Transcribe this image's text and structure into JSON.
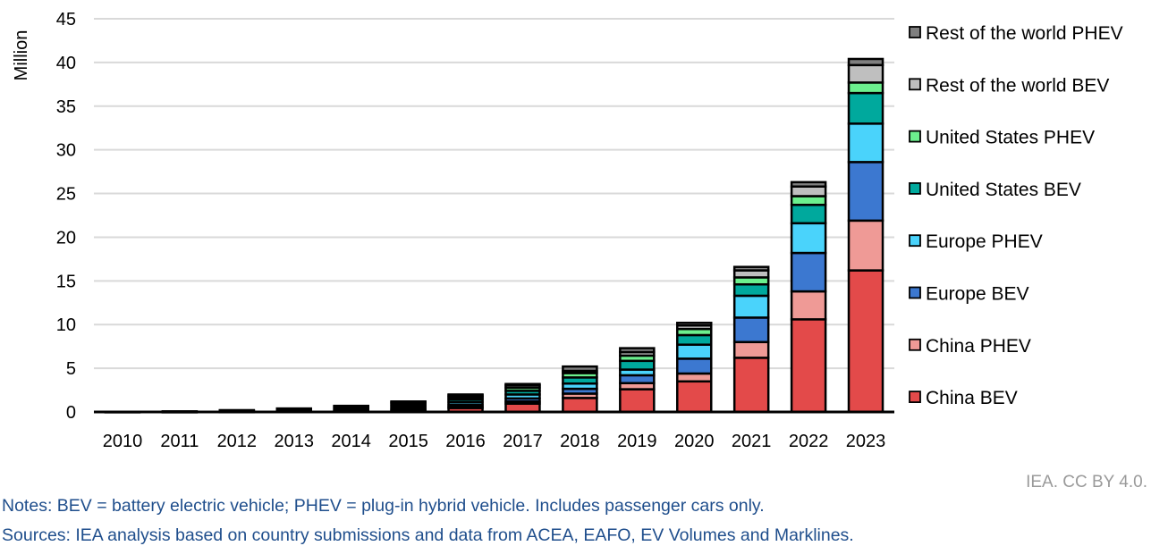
{
  "chart_data": {
    "type": "bar",
    "stacked": true,
    "title": "",
    "xlabel": "",
    "ylabel": "Million",
    "ylim": [
      0,
      45
    ],
    "yticks": [
      0,
      5,
      10,
      15,
      20,
      25,
      30,
      35,
      40,
      45
    ],
    "grid": "horizontal",
    "legend_position": "right",
    "categories": [
      "2010",
      "2011",
      "2012",
      "2013",
      "2014",
      "2015",
      "2016",
      "2017",
      "2018",
      "2019",
      "2020",
      "2021",
      "2022",
      "2023"
    ],
    "series": [
      {
        "name": "China BEV",
        "color": "#e34a4a",
        "values": [
          0.01,
          0.01,
          0.02,
          0.03,
          0.08,
          0.2,
          0.45,
          0.95,
          1.6,
          2.6,
          3.5,
          6.2,
          10.6,
          16.2
        ]
      },
      {
        "name": "China PHEV",
        "color": "#ef9a96",
        "values": [
          0,
          0,
          0,
          0.01,
          0.03,
          0.08,
          0.15,
          0.25,
          0.5,
          0.7,
          0.9,
          1.8,
          3.2,
          5.7
        ]
      },
      {
        "name": "Europe BEV",
        "color": "#3c78d0",
        "values": [
          0,
          0.01,
          0.03,
          0.06,
          0.1,
          0.18,
          0.25,
          0.35,
          0.55,
          0.9,
          1.7,
          2.8,
          4.4,
          6.7
        ]
      },
      {
        "name": "Europe PHEV",
        "color": "#4ad3fb",
        "values": [
          0,
          0,
          0.02,
          0.04,
          0.1,
          0.2,
          0.3,
          0.45,
          0.6,
          0.65,
          1.6,
          2.5,
          3.4,
          4.4
        ]
      },
      {
        "name": "United States BEV",
        "color": "#00a99d",
        "values": [
          0,
          0.01,
          0.03,
          0.07,
          0.13,
          0.2,
          0.3,
          0.42,
          0.7,
          1.0,
          1.1,
          1.3,
          2.1,
          3.5
        ]
      },
      {
        "name": "United States PHEV",
        "color": "#6cf08e",
        "values": [
          0,
          0.02,
          0.05,
          0.1,
          0.15,
          0.2,
          0.25,
          0.35,
          0.5,
          0.6,
          0.7,
          0.8,
          1.0,
          1.2
        ]
      },
      {
        "name": "Rest of the world BEV",
        "color": "#bfbfbf",
        "values": [
          0.01,
          0.02,
          0.04,
          0.07,
          0.1,
          0.1,
          0.2,
          0.28,
          0.25,
          0.4,
          0.4,
          0.8,
          1.1,
          2.0
        ]
      },
      {
        "name": "Rest of the world PHEV",
        "color": "#7f7f7f",
        "values": [
          0,
          0,
          0.01,
          0.02,
          0.01,
          0.04,
          0.1,
          0.15,
          0.5,
          0.45,
          0.3,
          0.4,
          0.5,
          0.7
        ]
      }
    ]
  },
  "footer": {
    "credit": "IEA. CC BY 4.0.",
    "notes": "Notes: BEV = battery electric vehicle; PHEV = plug-in hybrid vehicle. Includes passenger cars only.",
    "sources": "Sources: IEA analysis based on country submissions and data from ACEA, EAFO, EV Volumes and Marklines."
  }
}
